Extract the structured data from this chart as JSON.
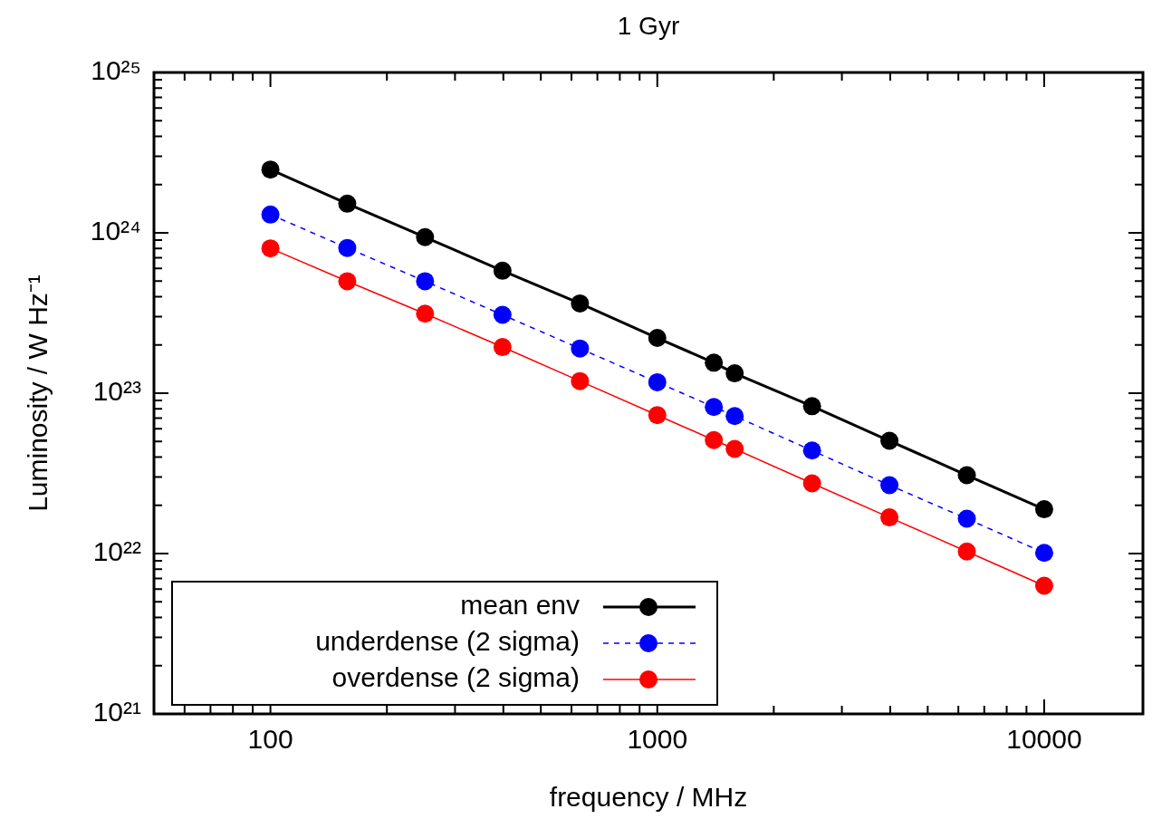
{
  "chart_data": {
    "type": "line",
    "title": "1 Gyr",
    "xlabel": "frequency / MHz",
    "ylabel": "Luminosity / W Hz⁻¹",
    "log": "xy",
    "grid": false,
    "legend": "bottom left",
    "marker": "circle",
    "x": [
      100,
      158,
      251,
      398,
      631,
      1000,
      1400,
      1585,
      2512,
      3981,
      6310,
      10000
    ],
    "xlim": [
      50,
      18000
    ],
    "xticks": [
      {
        "value": 60,
        "label": null
      },
      {
        "value": 70,
        "label": null
      },
      {
        "value": 80,
        "label": null
      },
      {
        "value": 90,
        "label": null
      },
      100,
      {
        "value": 200,
        "label": null
      },
      {
        "value": 300,
        "label": null
      },
      {
        "value": 400,
        "label": null
      },
      {
        "value": 500,
        "label": null
      },
      {
        "value": 600,
        "label": null
      },
      {
        "value": 700,
        "label": null
      },
      {
        "value": 800,
        "label": null
      },
      {
        "value": 900,
        "label": null
      },
      1000,
      {
        "value": 2000,
        "label": null
      },
      {
        "value": 3000,
        "label": null
      },
      {
        "value": 4000,
        "label": null
      },
      {
        "value": 5000,
        "label": null
      },
      {
        "value": 6000,
        "label": null
      },
      {
        "value": 7000,
        "label": null
      },
      {
        "value": 8000,
        "label": null
      },
      {
        "value": 9000,
        "label": null
      },
      10000
    ],
    "ylim": [
      1e+21,
      1e+25
    ],
    "yticks": [
      {
        "value": 1e+21,
        "label": "10²¹"
      },
      {
        "value": 2e+21,
        "label": null
      },
      {
        "value": 3e+21,
        "label": null
      },
      {
        "value": 4e+21,
        "label": null
      },
      {
        "value": 5e+21,
        "label": null
      },
      {
        "value": 6e+21,
        "label": null
      },
      {
        "value": 7e+21,
        "label": null
      },
      {
        "value": 8e+21,
        "label": null
      },
      {
        "value": 9e+21,
        "label": null
      },
      {
        "value": 1e+22,
        "label": "10²²"
      },
      {
        "value": 2e+22,
        "label": null
      },
      {
        "value": 3e+22,
        "label": null
      },
      {
        "value": 4e+22,
        "label": null
      },
      {
        "value": 5e+22,
        "label": null
      },
      {
        "value": 6e+22,
        "label": null
      },
      {
        "value": 7e+22,
        "label": null
      },
      {
        "value": 8e+22,
        "label": null
      },
      {
        "value": 9e+22,
        "label": null
      },
      {
        "value": 1e+23,
        "label": "10²³"
      },
      {
        "value": 2e+23,
        "label": null
      },
      {
        "value": 3e+23,
        "label": null
      },
      {
        "value": 4e+23,
        "label": null
      },
      {
        "value": 5e+23,
        "label": null
      },
      {
        "value": 6e+23,
        "label": null
      },
      {
        "value": 7e+23,
        "label": null
      },
      {
        "value": 8e+23,
        "label": null
      },
      {
        "value": 9e+23,
        "label": null
      },
      {
        "value": 1e+24,
        "label": "10²⁴"
      },
      {
        "value": 2e+24,
        "label": null
      },
      {
        "value": 3e+24,
        "label": null
      },
      {
        "value": 4e+24,
        "label": null
      },
      {
        "value": 5e+24,
        "label": null
      },
      {
        "value": 6e+24,
        "label": null
      },
      {
        "value": 7e+24,
        "label": null
      },
      {
        "value": 8e+24,
        "label": null
      },
      {
        "value": 9e+24,
        "label": null
      },
      {
        "value": 1e+25,
        "label": "10²⁵"
      }
    ],
    "series": [
      {
        "name": "mean env",
        "color": "#000000",
        "line_style": "solid",
        "values": [
          2.48e+24,
          1.52e+24,
          9.4e+23,
          5.8e+23,
          3.63e+23,
          2.21e+23,
          1.55e+23,
          1.33e+23,
          8.3e+22,
          5.05e+22,
          3.08e+22,
          1.89e+22
        ]
      },
      {
        "name": "underdense (2 sigma)",
        "color": "#0000ff",
        "line_style": "dashed",
        "values": [
          1.3e+24,
          8.05e+23,
          4.99e+23,
          3.08e+23,
          1.9e+23,
          1.17e+23,
          8.2e+22,
          7.2e+22,
          4.39e+22,
          2.67e+22,
          1.65e+22,
          1.01e+22
        ]
      },
      {
        "name": "overdense (2 sigma)",
        "color": "#ff0000",
        "line_style": "solid",
        "values": [
          8e+23,
          4.99e+23,
          3.13e+23,
          1.94e+23,
          1.19e+23,
          7.3e+22,
          5.1e+22,
          4.49e+22,
          2.74e+22,
          1.68e+22,
          1.03e+22,
          6.3e+21
        ]
      }
    ]
  }
}
